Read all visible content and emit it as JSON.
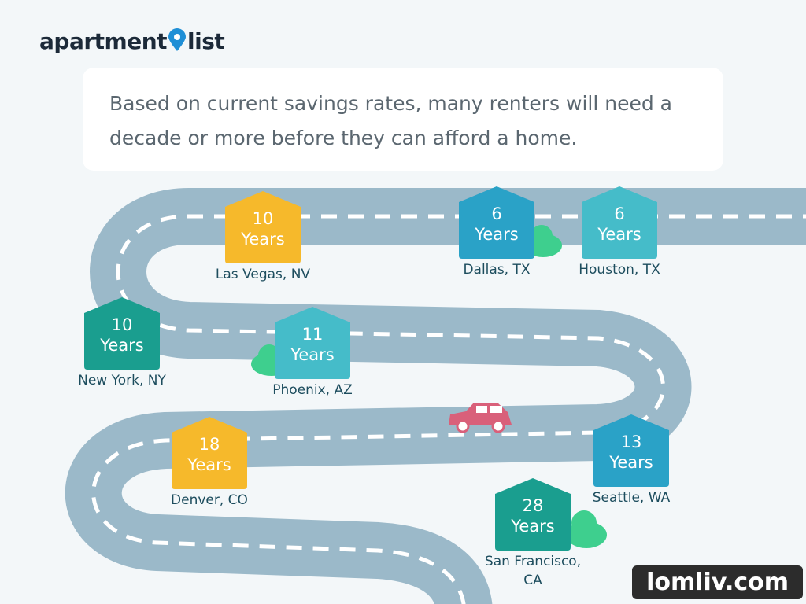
{
  "logo": {
    "left": "apartment",
    "right": "list"
  },
  "headline": "Based on current savings rates, many renters will need a decade or more before they can afford a home.",
  "cities": [
    {
      "name": "Las Vegas, NV",
      "years": 10,
      "unit": "Years",
      "color": "#f6b92b"
    },
    {
      "name": "Dallas, TX",
      "years": 6,
      "unit": "Years",
      "color": "#2aa2c7"
    },
    {
      "name": "Houston, TX",
      "years": 6,
      "unit": "Years",
      "color": "#45bcc9"
    },
    {
      "name": "New York, NY",
      "years": 10,
      "unit": "Years",
      "color": "#1a9e8f"
    },
    {
      "name": "Phoenix, AZ",
      "years": 11,
      "unit": "Years",
      "color": "#45bcc9"
    },
    {
      "name": "Seattle, WA",
      "years": 13,
      "unit": "Years",
      "color": "#2aa2c7"
    },
    {
      "name": "Denver, CO",
      "years": 18,
      "unit": "Years",
      "color": "#f6b92b"
    },
    {
      "name": "San Francisco, CA",
      "years": 28,
      "unit": "Years",
      "color": "#1a9e8f"
    }
  ],
  "watermark": "lomliv.com"
}
